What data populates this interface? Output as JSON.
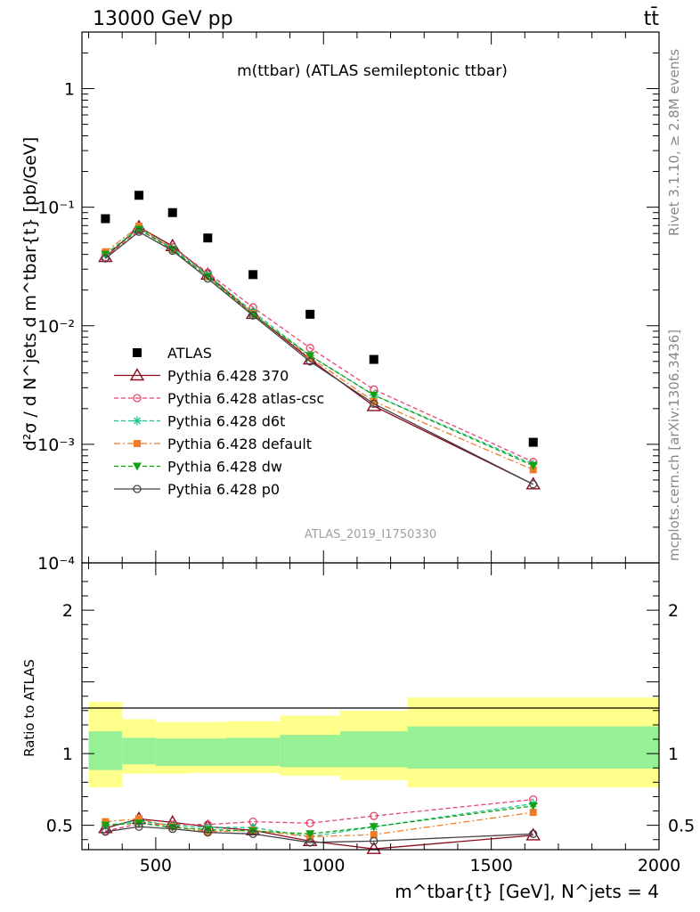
{
  "header": {
    "left": "13000 GeV pp",
    "right": "tt̄"
  },
  "side_text": {
    "rivet": "Rivet 3.1.10, ≥ 2.8M events",
    "mcplots": "mcplots.cern.ch [arXiv:1306.3436]"
  },
  "chart_data": [
    {
      "type": "scatter",
      "panel": "main",
      "title": "m(ttbar) (ATLAS semileptonic ttbar)",
      "ylabel": "d²σ / d N^jets d m^tbar{t} [pb/GeV]",
      "yscale": "log",
      "ylim": [
        0.0001,
        3
      ],
      "xlim": [
        280,
        2000
      ],
      "watermark": "ATLAS_2019_I1750330",
      "legend_position": "middle-left",
      "y_tick_labels": [
        "1",
        "10⁻¹",
        "10⁻²",
        "10⁻³",
        "10⁻⁴"
      ],
      "x": [
        350,
        450,
        550,
        655,
        790,
        960,
        1150,
        1625
      ],
      "series": [
        {
          "name": "ATLAS",
          "color": "#000000",
          "style": "data-square",
          "values": [
            0.08,
            0.126,
            0.09,
            0.055,
            0.027,
            0.0125,
            0.0052,
            0.00104
          ]
        },
        {
          "name": "Pythia 6.428 370",
          "color": "#8b0a1e",
          "style": "solid-triangle",
          "values": [
            0.038,
            0.068,
            0.047,
            0.027,
            0.0126,
            0.0052,
            0.0021,
            0.00046
          ]
        },
        {
          "name": "Pythia 6.428 atlas-csc",
          "color": "#e8456b",
          "style": "dashed-circle",
          "values": [
            0.038,
            0.064,
            0.046,
            0.028,
            0.0143,
            0.0065,
            0.0029,
            0.00071
          ]
        },
        {
          "name": "Pythia 6.428 d6t",
          "color": "#1ec88c",
          "style": "dashed-star",
          "values": [
            0.04,
            0.067,
            0.045,
            0.027,
            0.0131,
            0.0056,
            0.0026,
            0.00068
          ]
        },
        {
          "name": "Pythia 6.428 default",
          "color": "#f07c28",
          "style": "dashdot-square",
          "values": [
            0.042,
            0.069,
            0.044,
            0.026,
            0.0127,
            0.0054,
            0.0023,
            0.00061
          ]
        },
        {
          "name": "Pythia 6.428 dw",
          "color": "#14a014",
          "style": "dashed-triangledown",
          "values": [
            0.04,
            0.065,
            0.044,
            0.026,
            0.0124,
            0.0056,
            0.0026,
            0.00066
          ]
        },
        {
          "name": "Pythia 6.428 p0",
          "color": "#444444",
          "style": "solid-opencircle",
          "values": [
            0.037,
            0.062,
            0.043,
            0.025,
            0.0122,
            0.005,
            0.0022,
            0.00046
          ]
        }
      ]
    },
    {
      "type": "line",
      "panel": "ratio",
      "ylabel": "Ratio to ATLAS",
      "xlabel": "m^tbar{t} [GeV], N^jets = 4",
      "ylim": [
        0.33,
        2.33
      ],
      "xlim": [
        280,
        2000
      ],
      "x_ticks": [
        500,
        1000,
        1500,
        2000
      ],
      "y_ticks": [
        0.5,
        1,
        2
      ],
      "bin_edges": [
        300,
        400,
        500,
        600,
        710,
        870,
        1050,
        1250,
        2000
      ],
      "band_inner": [
        [
          0.885,
          1.155
        ],
        [
          0.925,
          1.11
        ],
        [
          0.915,
          1.105
        ],
        [
          0.915,
          1.105
        ],
        [
          0.915,
          1.11
        ],
        [
          0.905,
          1.13
        ],
        [
          0.905,
          1.155
        ],
        [
          0.895,
          1.19
        ]
      ],
      "band_outer": [
        [
          0.765,
          1.36
        ],
        [
          0.86,
          1.24
        ],
        [
          0.86,
          1.22
        ],
        [
          0.865,
          1.22
        ],
        [
          0.865,
          1.225
        ],
        [
          0.845,
          1.265
        ],
        [
          0.815,
          1.3
        ],
        [
          0.765,
          1.39
        ]
      ],
      "x": [
        350,
        450,
        550,
        655,
        790,
        960,
        1150,
        1625
      ],
      "series": [
        {
          "name": "Pythia 6.428 370",
          "color": "#8b0a1e",
          "values": [
            0.48,
            0.545,
            0.52,
            0.49,
            0.465,
            0.39,
            0.335,
            0.43
          ]
        },
        {
          "name": "Pythia 6.428 atlas-csc",
          "color": "#e8456b",
          "values": [
            0.46,
            0.51,
            0.505,
            0.505,
            0.525,
            0.515,
            0.565,
            0.68
          ]
        },
        {
          "name": "Pythia 6.428 d6t",
          "color": "#1ec88c",
          "values": [
            0.5,
            0.53,
            0.5,
            0.485,
            0.485,
            0.42,
            0.49,
            0.65
          ]
        },
        {
          "name": "Pythia 6.428 default",
          "color": "#f07c28",
          "values": [
            0.525,
            0.545,
            0.49,
            0.455,
            0.465,
            0.42,
            0.435,
            0.59
          ]
        },
        {
          "name": "Pythia 6.428 dw",
          "color": "#14a014",
          "values": [
            0.5,
            0.515,
            0.485,
            0.47,
            0.46,
            0.44,
            0.49,
            0.635
          ]
        },
        {
          "name": "Pythia 6.428 p0",
          "color": "#444444",
          "values": [
            0.455,
            0.49,
            0.475,
            0.45,
            0.44,
            0.38,
            0.39,
            0.44
          ]
        }
      ]
    }
  ]
}
